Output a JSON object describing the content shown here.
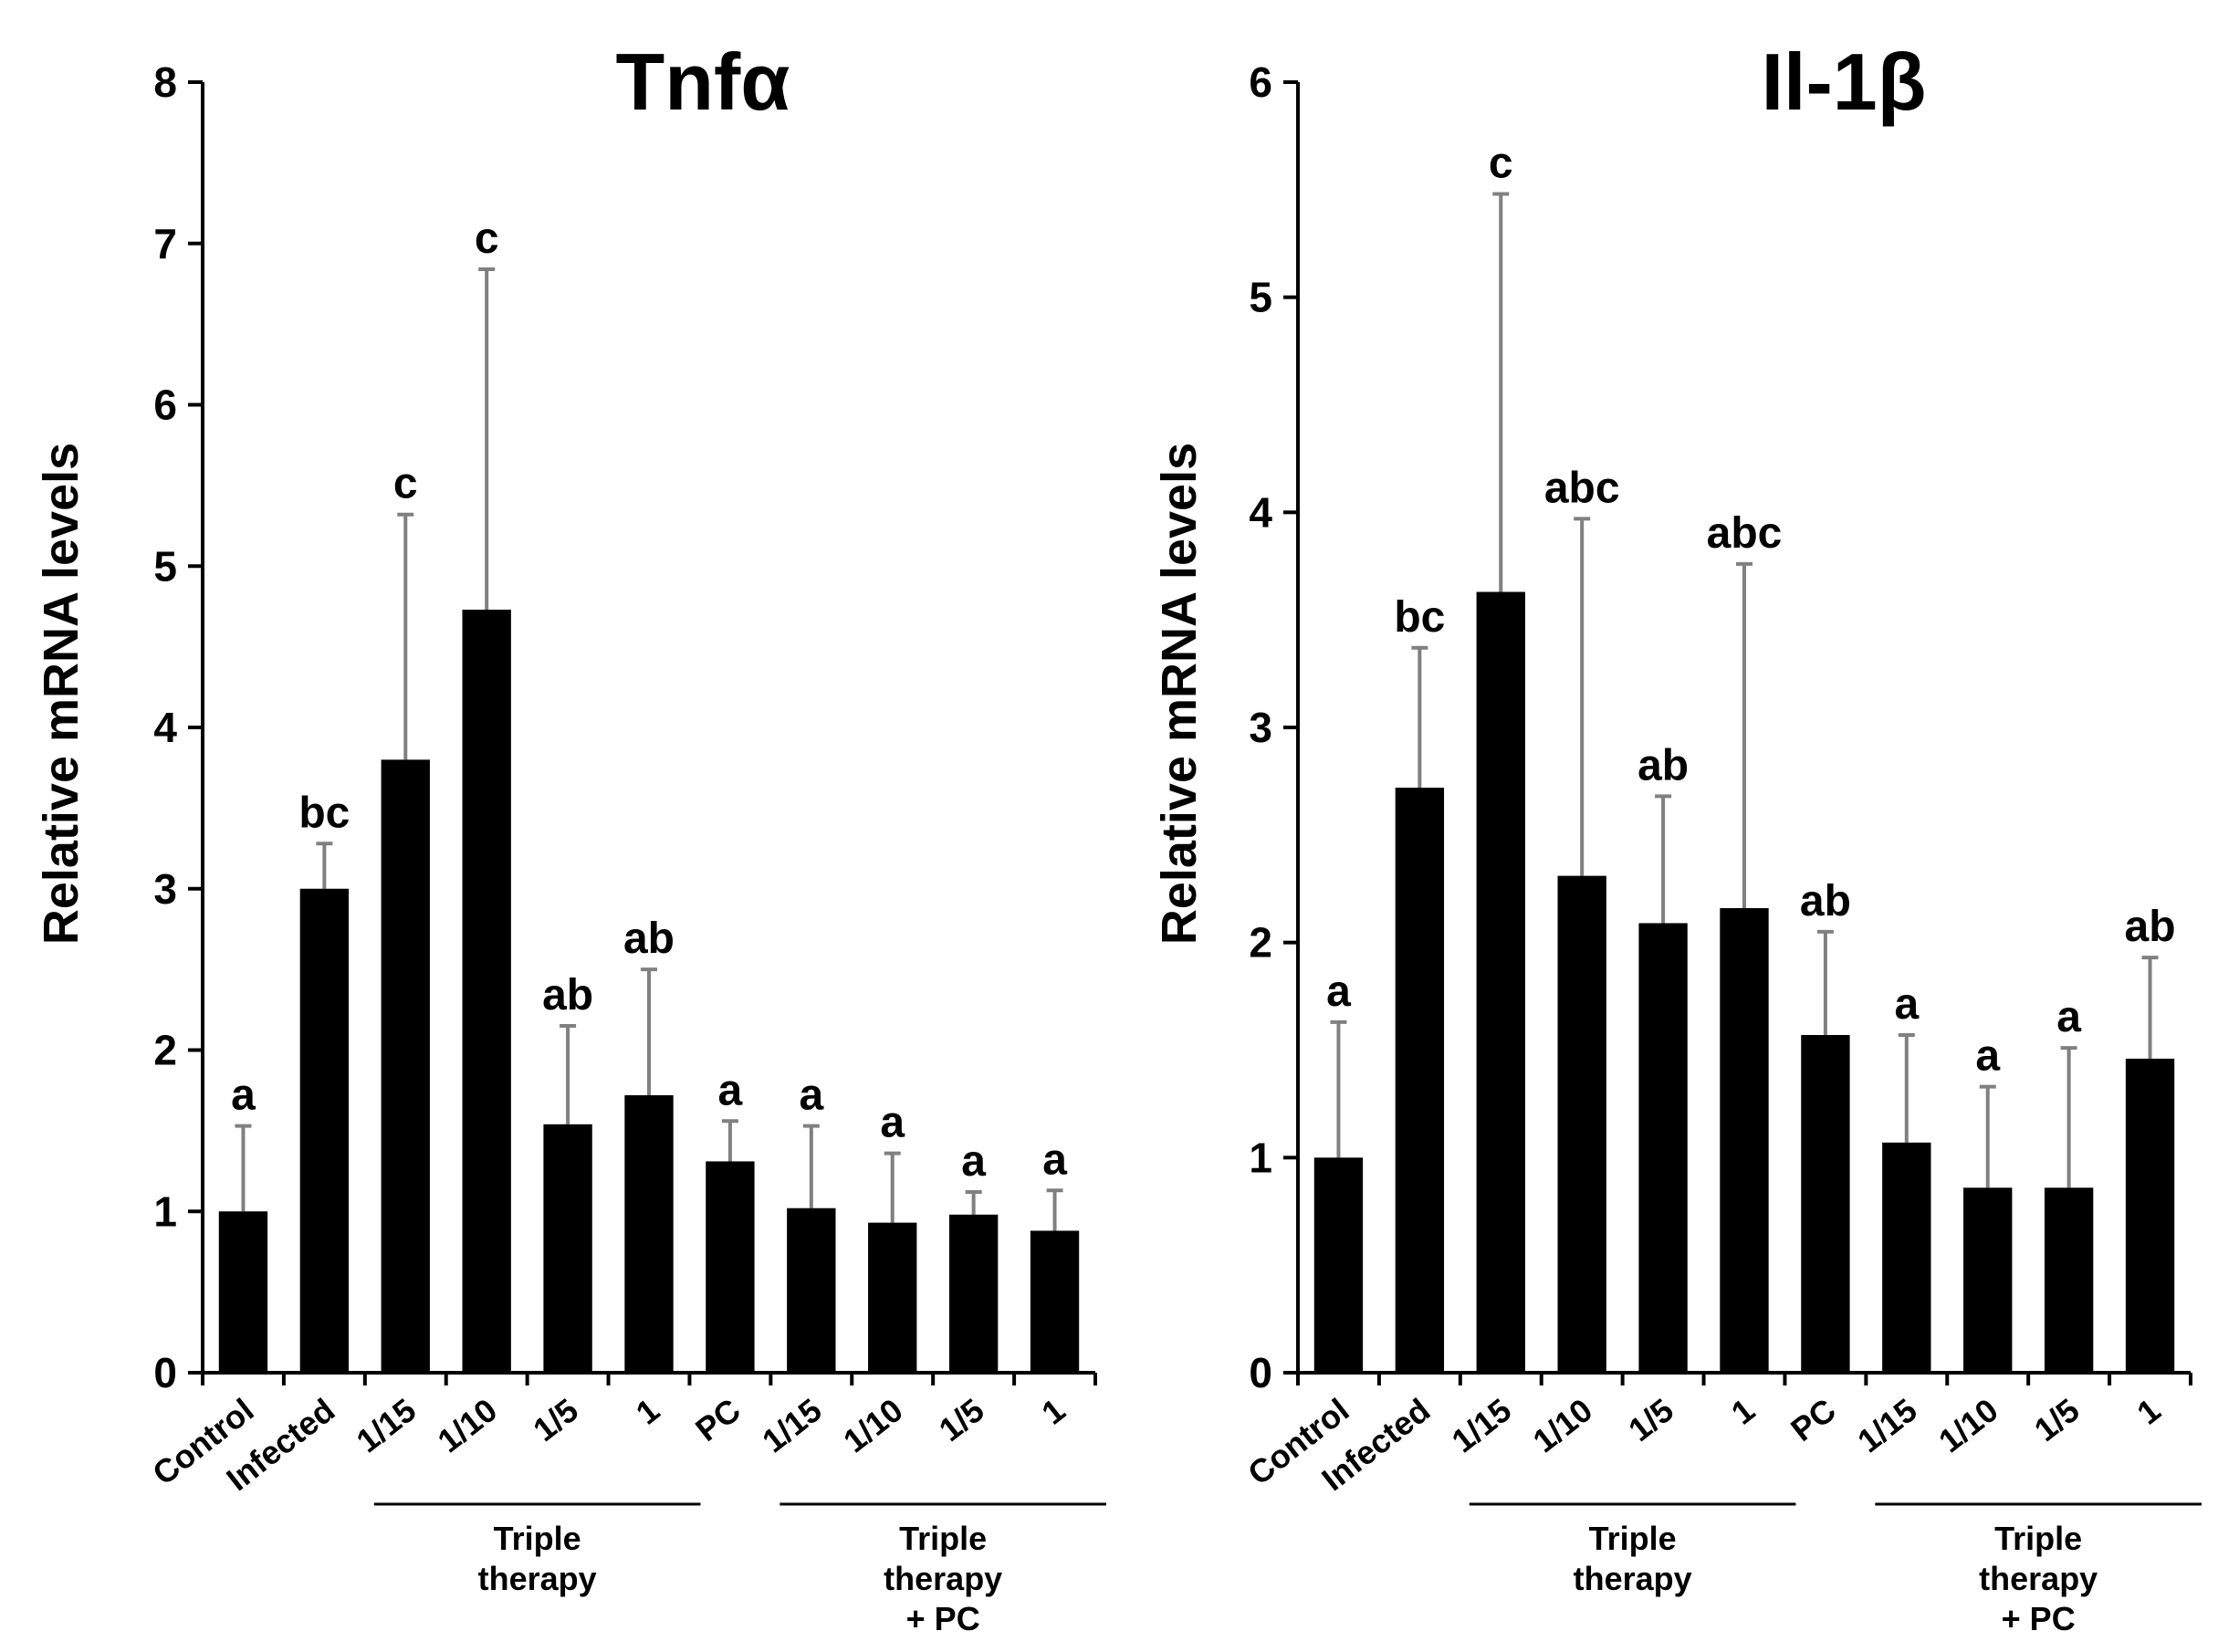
{
  "chart_data": [
    {
      "type": "bar",
      "title": "Tnfα",
      "ylabel": "Relative mRNA levels",
      "xlabel": "",
      "ylim": [
        0,
        8
      ],
      "yticks": [
        0,
        1,
        2,
        3,
        4,
        5,
        6,
        7,
        8
      ],
      "categories": [
        "Control",
        "Infected",
        "1/15",
        "1/10",
        "1/5",
        "1",
        "PC",
        "1/15",
        "1/10",
        "1/5",
        "1"
      ],
      "values": [
        1.0,
        3.0,
        3.8,
        4.73,
        1.54,
        1.72,
        1.31,
        1.02,
        0.93,
        0.98,
        0.88
      ],
      "error_upper": [
        1.53,
        3.28,
        5.32,
        6.84,
        2.15,
        2.5,
        1.56,
        1.53,
        1.36,
        1.12,
        1.13
      ],
      "significance": [
        "a",
        "bc",
        "c",
        "c",
        "ab",
        "ab",
        "a",
        "a",
        "a",
        "a",
        "a"
      ],
      "groups": [
        {
          "label": [
            "Triple",
            "therapy"
          ],
          "from": 2,
          "to": 5
        },
        {
          "label": [
            "Triple",
            "therapy",
            "+ PC"
          ],
          "from": 7,
          "to": 10
        }
      ],
      "bar_color": "#000000",
      "error_color": "#808080"
    },
    {
      "type": "bar",
      "title": "Il-1β",
      "ylabel": "Relative mRNA levels",
      "xlabel": "",
      "ylim": [
        0,
        6
      ],
      "yticks": [
        0,
        1,
        2,
        3,
        4,
        5,
        6
      ],
      "categories": [
        "Control",
        "Infected",
        "1/15",
        "1/10",
        "1/5",
        "1",
        "PC",
        "1/15",
        "1/10",
        "1/5",
        "1"
      ],
      "values": [
        1.0,
        2.72,
        3.63,
        2.31,
        2.09,
        2.16,
        1.57,
        1.07,
        0.86,
        0.86,
        1.46
      ],
      "error_upper": [
        1.63,
        3.37,
        5.48,
        3.97,
        2.68,
        3.76,
        2.05,
        1.57,
        1.33,
        1.51,
        1.93
      ],
      "significance": [
        "a",
        "bc",
        "c",
        "abc",
        "ab",
        "abc",
        "ab",
        "a",
        "a",
        "a",
        "ab"
      ],
      "groups": [
        {
          "label": [
            "Triple",
            "therapy"
          ],
          "from": 2,
          "to": 5
        },
        {
          "label": [
            "Triple",
            "therapy",
            "+ PC"
          ],
          "from": 7,
          "to": 10
        }
      ],
      "bar_color": "#000000",
      "error_color": "#808080"
    }
  ]
}
